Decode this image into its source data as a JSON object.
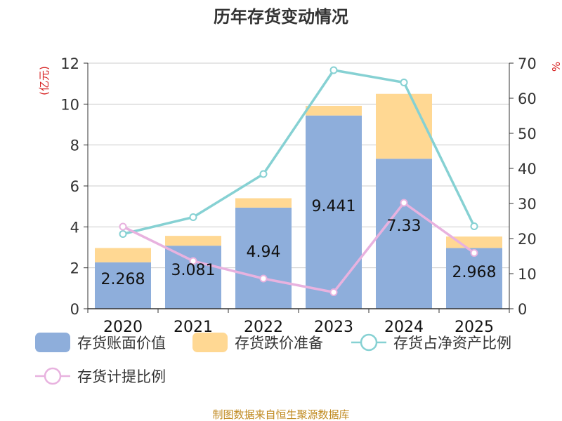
{
  "title": "历年存货变动情况",
  "source": "制图数据来自恒生聚源数据库",
  "colors": {
    "book_value": "#8eaedb",
    "impairment": "#ffd893",
    "net_asset_ratio": "#86d1d3",
    "provision_ratio": "#e8b2df",
    "unit_label": "#d62020",
    "source": "#c08a20",
    "axis": "#333333",
    "grid": "#cccccc"
  },
  "chart_data": {
    "type": "bar",
    "title": "历年存货变动情况",
    "categories": [
      "2020",
      "2021",
      "2022",
      "2023",
      "2024",
      "2025"
    ],
    "left_axis": {
      "unit": "(亿元)",
      "ylim": [
        0,
        12
      ],
      "ticks": [
        0,
        2,
        4,
        6,
        8,
        10,
        12
      ]
    },
    "right_axis": {
      "unit": "%",
      "ylim": [
        0,
        70
      ],
      "ticks": [
        0,
        10,
        20,
        30,
        40,
        50,
        60,
        70
      ]
    },
    "series": [
      {
        "name": "存货账面价值",
        "kind": "bar",
        "axis": "left",
        "stack": "inv",
        "values": [
          2.268,
          3.081,
          4.94,
          9.441,
          7.33,
          2.968
        ],
        "labels": [
          "2.268",
          "3.081",
          "4.94",
          "9.441",
          "7.33",
          "2.968"
        ]
      },
      {
        "name": "存货跌价准备",
        "kind": "bar",
        "axis": "left",
        "stack": "inv",
        "values": [
          0.7,
          0.48,
          0.46,
          0.47,
          3.17,
          0.56
        ]
      },
      {
        "name": "存货占净资产比例",
        "kind": "line",
        "axis": "right",
        "values": [
          21.3,
          26.1,
          38.4,
          68.0,
          64.5,
          23.5
        ]
      },
      {
        "name": "存货计提比例",
        "kind": "line",
        "axis": "right",
        "values": [
          23.4,
          13.6,
          8.6,
          4.7,
          30.2,
          15.9
        ]
      }
    ],
    "grid": true,
    "legend_position": "bottom"
  }
}
